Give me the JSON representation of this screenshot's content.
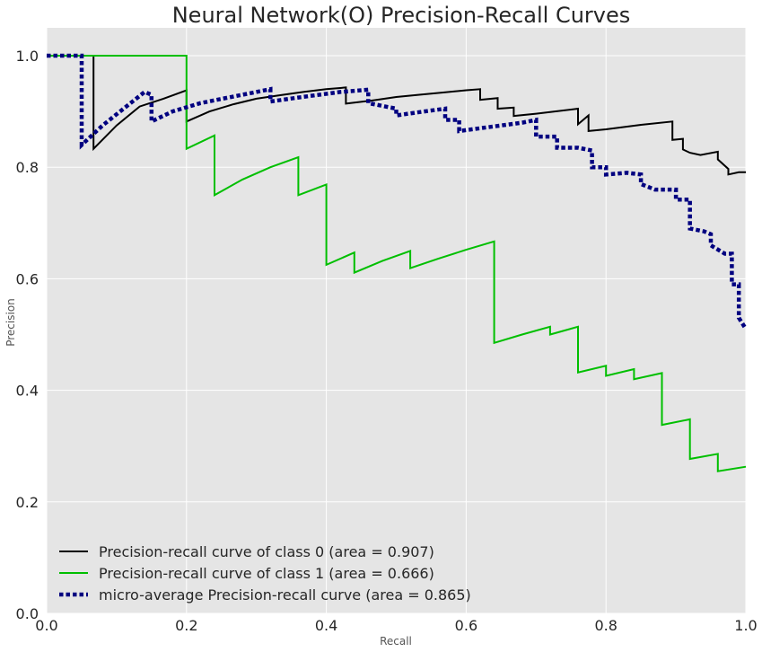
{
  "chart_data": {
    "type": "line",
    "title": "Neural Network(O) Precision-Recall Curves",
    "xlabel": "Recall",
    "ylabel": "Precision",
    "xlim": [
      0,
      1
    ],
    "ylim": [
      0,
      1.05
    ],
    "xticks": [
      0.0,
      0.2,
      0.4,
      0.6,
      0.8,
      1.0
    ],
    "xtick_labels": [
      "0.0",
      "0.2",
      "0.4",
      "0.6",
      "0.8",
      "1.0"
    ],
    "yticks": [
      0.0,
      0.2,
      0.4,
      0.6,
      0.8,
      1.0
    ],
    "ytick_labels": [
      "0.0",
      "0.2",
      "0.4",
      "0.6",
      "0.8",
      "1.0"
    ],
    "grid": true,
    "legend_position": "lower-left",
    "background_color": "#e5e5e5",
    "grid_color": "#ffffff",
    "series": [
      {
        "name": "Precision-recall curve of class 0 (area = 0.907)",
        "color": "#000000",
        "style": "solid",
        "points": [
          [
            0,
            1.0
          ],
          [
            0.067,
            1.0
          ],
          [
            0.067,
            0.833
          ],
          [
            0.1,
            0.875
          ],
          [
            0.133,
            0.909
          ],
          [
            0.167,
            0.923
          ],
          [
            0.2,
            0.938
          ],
          [
            0.2,
            0.882
          ],
          [
            0.233,
            0.9
          ],
          [
            0.267,
            0.913
          ],
          [
            0.3,
            0.923
          ],
          [
            0.333,
            0.929
          ],
          [
            0.367,
            0.935
          ],
          [
            0.4,
            0.94
          ],
          [
            0.428,
            0.943
          ],
          [
            0.428,
            0.914
          ],
          [
            0.467,
            0.92
          ],
          [
            0.5,
            0.926
          ],
          [
            0.533,
            0.93
          ],
          [
            0.567,
            0.934
          ],
          [
            0.6,
            0.938
          ],
          [
            0.62,
            0.94
          ],
          [
            0.62,
            0.921
          ],
          [
            0.645,
            0.924
          ],
          [
            0.645,
            0.905
          ],
          [
            0.668,
            0.907
          ],
          [
            0.668,
            0.892
          ],
          [
            0.7,
            0.896
          ],
          [
            0.76,
            0.905
          ],
          [
            0.76,
            0.877
          ],
          [
            0.775,
            0.893
          ],
          [
            0.775,
            0.865
          ],
          [
            0.8,
            0.868
          ],
          [
            0.85,
            0.876
          ],
          [
            0.895,
            0.882
          ],
          [
            0.895,
            0.849
          ],
          [
            0.91,
            0.851
          ],
          [
            0.91,
            0.832
          ],
          [
            0.92,
            0.826
          ],
          [
            0.935,
            0.822
          ],
          [
            0.96,
            0.828
          ],
          [
            0.96,
            0.814
          ],
          [
            0.975,
            0.797
          ],
          [
            0.975,
            0.787
          ],
          [
            0.99,
            0.791
          ],
          [
            1.0,
            0.791
          ]
        ]
      },
      {
        "name": "Precision-recall curve of class 1 (area = 0.666)",
        "color": "#00bf00",
        "style": "solid",
        "points": [
          [
            0,
            1.0
          ],
          [
            0.2,
            1.0
          ],
          [
            0.2,
            0.833
          ],
          [
            0.24,
            0.857
          ],
          [
            0.24,
            0.75
          ],
          [
            0.28,
            0.778
          ],
          [
            0.32,
            0.8
          ],
          [
            0.36,
            0.818
          ],
          [
            0.36,
            0.75
          ],
          [
            0.4,
            0.769
          ],
          [
            0.4,
            0.625
          ],
          [
            0.44,
            0.647
          ],
          [
            0.44,
            0.611
          ],
          [
            0.48,
            0.632
          ],
          [
            0.52,
            0.65
          ],
          [
            0.52,
            0.619
          ],
          [
            0.56,
            0.636
          ],
          [
            0.6,
            0.652
          ],
          [
            0.64,
            0.667
          ],
          [
            0.64,
            0.485
          ],
          [
            0.68,
            0.5
          ],
          [
            0.72,
            0.514
          ],
          [
            0.72,
            0.5
          ],
          [
            0.76,
            0.514
          ],
          [
            0.76,
            0.432
          ],
          [
            0.8,
            0.444
          ],
          [
            0.8,
            0.426
          ],
          [
            0.84,
            0.438
          ],
          [
            0.84,
            0.42
          ],
          [
            0.88,
            0.431
          ],
          [
            0.88,
            0.338
          ],
          [
            0.92,
            0.348
          ],
          [
            0.92,
            0.277
          ],
          [
            0.96,
            0.286
          ],
          [
            0.96,
            0.255
          ],
          [
            1.0,
            0.263
          ]
        ]
      },
      {
        "name": "micro-average Precision-recall curve (area = 0.865)",
        "color": "#000080",
        "style": "dotted",
        "points": [
          [
            0,
            1.0
          ],
          [
            0.05,
            1.0
          ],
          [
            0.05,
            0.84
          ],
          [
            0.08,
            0.875
          ],
          [
            0.11,
            0.905
          ],
          [
            0.14,
            0.935
          ],
          [
            0.15,
            0.93
          ],
          [
            0.15,
            0.882
          ],
          [
            0.18,
            0.9
          ],
          [
            0.22,
            0.915
          ],
          [
            0.26,
            0.925
          ],
          [
            0.32,
            0.94
          ],
          [
            0.32,
            0.918
          ],
          [
            0.36,
            0.925
          ],
          [
            0.42,
            0.935
          ],
          [
            0.46,
            0.939
          ],
          [
            0.46,
            0.915
          ],
          [
            0.5,
            0.905
          ],
          [
            0.5,
            0.893
          ],
          [
            0.54,
            0.9
          ],
          [
            0.57,
            0.905
          ],
          [
            0.57,
            0.885
          ],
          [
            0.59,
            0.885
          ],
          [
            0.59,
            0.865
          ],
          [
            0.62,
            0.87
          ],
          [
            0.68,
            0.88
          ],
          [
            0.7,
            0.885
          ],
          [
            0.7,
            0.855
          ],
          [
            0.73,
            0.855
          ],
          [
            0.73,
            0.835
          ],
          [
            0.76,
            0.835
          ],
          [
            0.78,
            0.83
          ],
          [
            0.78,
            0.8
          ],
          [
            0.8,
            0.8
          ],
          [
            0.8,
            0.787
          ],
          [
            0.83,
            0.79
          ],
          [
            0.85,
            0.787
          ],
          [
            0.85,
            0.77
          ],
          [
            0.87,
            0.76
          ],
          [
            0.9,
            0.76
          ],
          [
            0.9,
            0.742
          ],
          [
            0.92,
            0.742
          ],
          [
            0.92,
            0.69
          ],
          [
            0.94,
            0.685
          ],
          [
            0.95,
            0.68
          ],
          [
            0.95,
            0.66
          ],
          [
            0.97,
            0.645
          ],
          [
            0.98,
            0.645
          ],
          [
            0.98,
            0.59
          ],
          [
            0.99,
            0.59
          ],
          [
            0.99,
            0.53
          ],
          [
            1.0,
            0.51
          ]
        ]
      }
    ]
  }
}
